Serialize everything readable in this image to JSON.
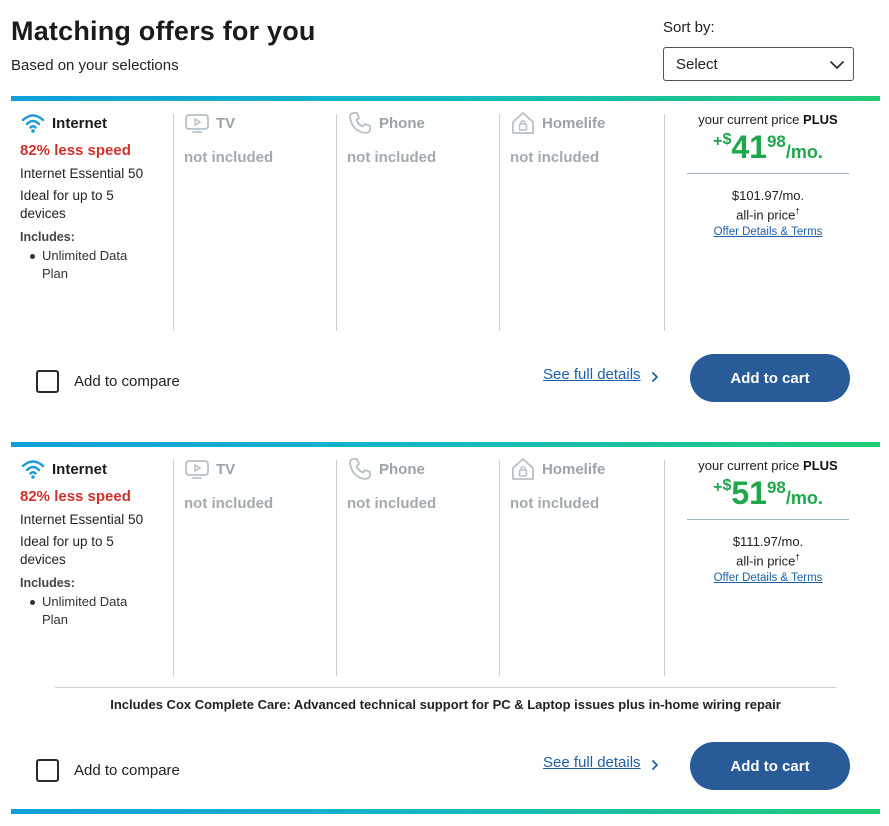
{
  "header": {
    "title": "Matching offers for you",
    "subtitle": "Based on your selections",
    "sort_label": "Sort by:",
    "sort_value": "Select"
  },
  "colors": {
    "bar_gradient": [
      "#0e9fdc",
      "#14b6c8",
      "#1fcb73"
    ],
    "speed_red": "#d0312d",
    "price_green": "#1ea749",
    "cart_blue": "#2a5b99",
    "link_blue": "#1d5fa8",
    "muted_gray": "#a2aab0"
  },
  "icons": {
    "internet": "wifi-icon",
    "tv": "tv-icon",
    "phone": "phone-icon",
    "homelife": "home-lock-icon",
    "sort": "chevron-down-icon",
    "details": "chevron-right-icon"
  },
  "offers": [
    {
      "internet_label": "Internet",
      "speed_note": "82% less speed",
      "plan_name": "Internet Essential 50",
      "ideal_for": "Ideal for up to 5 devices",
      "includes_label": "Includes:",
      "includes": [
        "Unlimited Data Plan"
      ],
      "tv_label": "TV",
      "tv_status": "not included",
      "phone_label": "Phone",
      "phone_status": "not included",
      "homelife_label": "Homelife",
      "homelife_status": "not included",
      "current_price_label": "your current price",
      "plus_label": "PLUS",
      "price_plus": "+",
      "price_currency": "$",
      "price_whole": "41",
      "price_cents": "98",
      "price_period": "/mo.",
      "allin_amount": "$101.97/mo.",
      "allin_label": "all-in price",
      "allin_mark": "†",
      "offer_link": "Offer Details & Terms",
      "compare_label": "Add to compare",
      "compare_checked": false,
      "details_link": "See full details",
      "cart_label": "Add to cart"
    },
    {
      "internet_label": "Internet",
      "speed_note": "82% less speed",
      "plan_name": "Internet Essential 50",
      "ideal_for": "Ideal for up to 5 devices",
      "includes_label": "Includes:",
      "includes": [
        "Unlimited Data Plan"
      ],
      "tv_label": "TV",
      "tv_status": "not included",
      "phone_label": "Phone",
      "phone_status": "not included",
      "homelife_label": "Homelife",
      "homelife_status": "not included",
      "current_price_label": "your current price",
      "plus_label": "PLUS",
      "price_plus": "+",
      "price_currency": "$",
      "price_whole": "51",
      "price_cents": "98",
      "price_period": "/mo.",
      "allin_amount": "$111.97/mo.",
      "allin_label": "all-in price",
      "allin_mark": "†",
      "offer_link": "Offer Details & Terms",
      "care_note": "Includes Cox Complete Care: Advanced technical support for PC & Laptop issues plus in-home wiring repair",
      "compare_label": "Add to compare",
      "compare_checked": false,
      "details_link": "See full details",
      "cart_label": "Add to cart"
    }
  ]
}
